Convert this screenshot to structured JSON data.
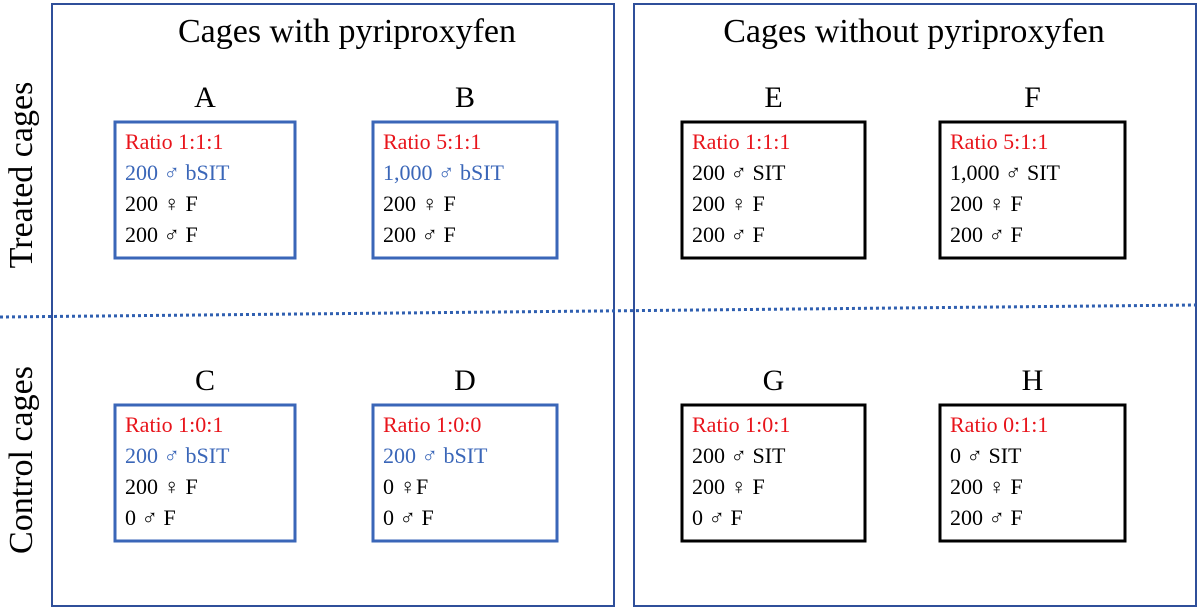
{
  "panels": [
    {
      "title": "Cages with pyriproxyfen"
    },
    {
      "title": "Cages without pyriproxyfen"
    }
  ],
  "rows": [
    "Treated cages",
    "Control cages"
  ],
  "cages": [
    {
      "label": "A",
      "lines": [
        "Ratio 1:1:1",
        "200 ♂ bSIT",
        "200 ♀ F",
        "200 ♂ F"
      ]
    },
    {
      "label": "B",
      "lines": [
        "Ratio 5:1:1",
        "1,000 ♂ bSIT",
        "200 ♀ F",
        "200 ♂ F"
      ]
    },
    {
      "label": "C",
      "lines": [
        "Ratio 1:0:1",
        "200 ♂ bSIT",
        "200 ♀ F",
        "0 ♂ F"
      ]
    },
    {
      "label": "D",
      "lines": [
        "Ratio 1:0:0",
        "200 ♂ bSIT",
        "0 ♀F",
        "0 ♂ F"
      ]
    },
    {
      "label": "E",
      "lines": [
        "Ratio 1:1:1",
        "200 ♂ SIT",
        "200 ♀ F",
        "200 ♂ F"
      ]
    },
    {
      "label": "F",
      "lines": [
        "Ratio 5:1:1",
        "1,000 ♂ SIT",
        "200 ♀ F",
        "200 ♂ F"
      ]
    },
    {
      "label": "G",
      "lines": [
        "Ratio 1:0:1",
        "200 ♂ SIT",
        "200 ♀ F",
        "0 ♂ F"
      ]
    },
    {
      "label": "H",
      "lines": [
        "Ratio 0:1:1",
        "0 ♂ SIT",
        "200 ♀ F",
        "200 ♂ F"
      ]
    }
  ]
}
